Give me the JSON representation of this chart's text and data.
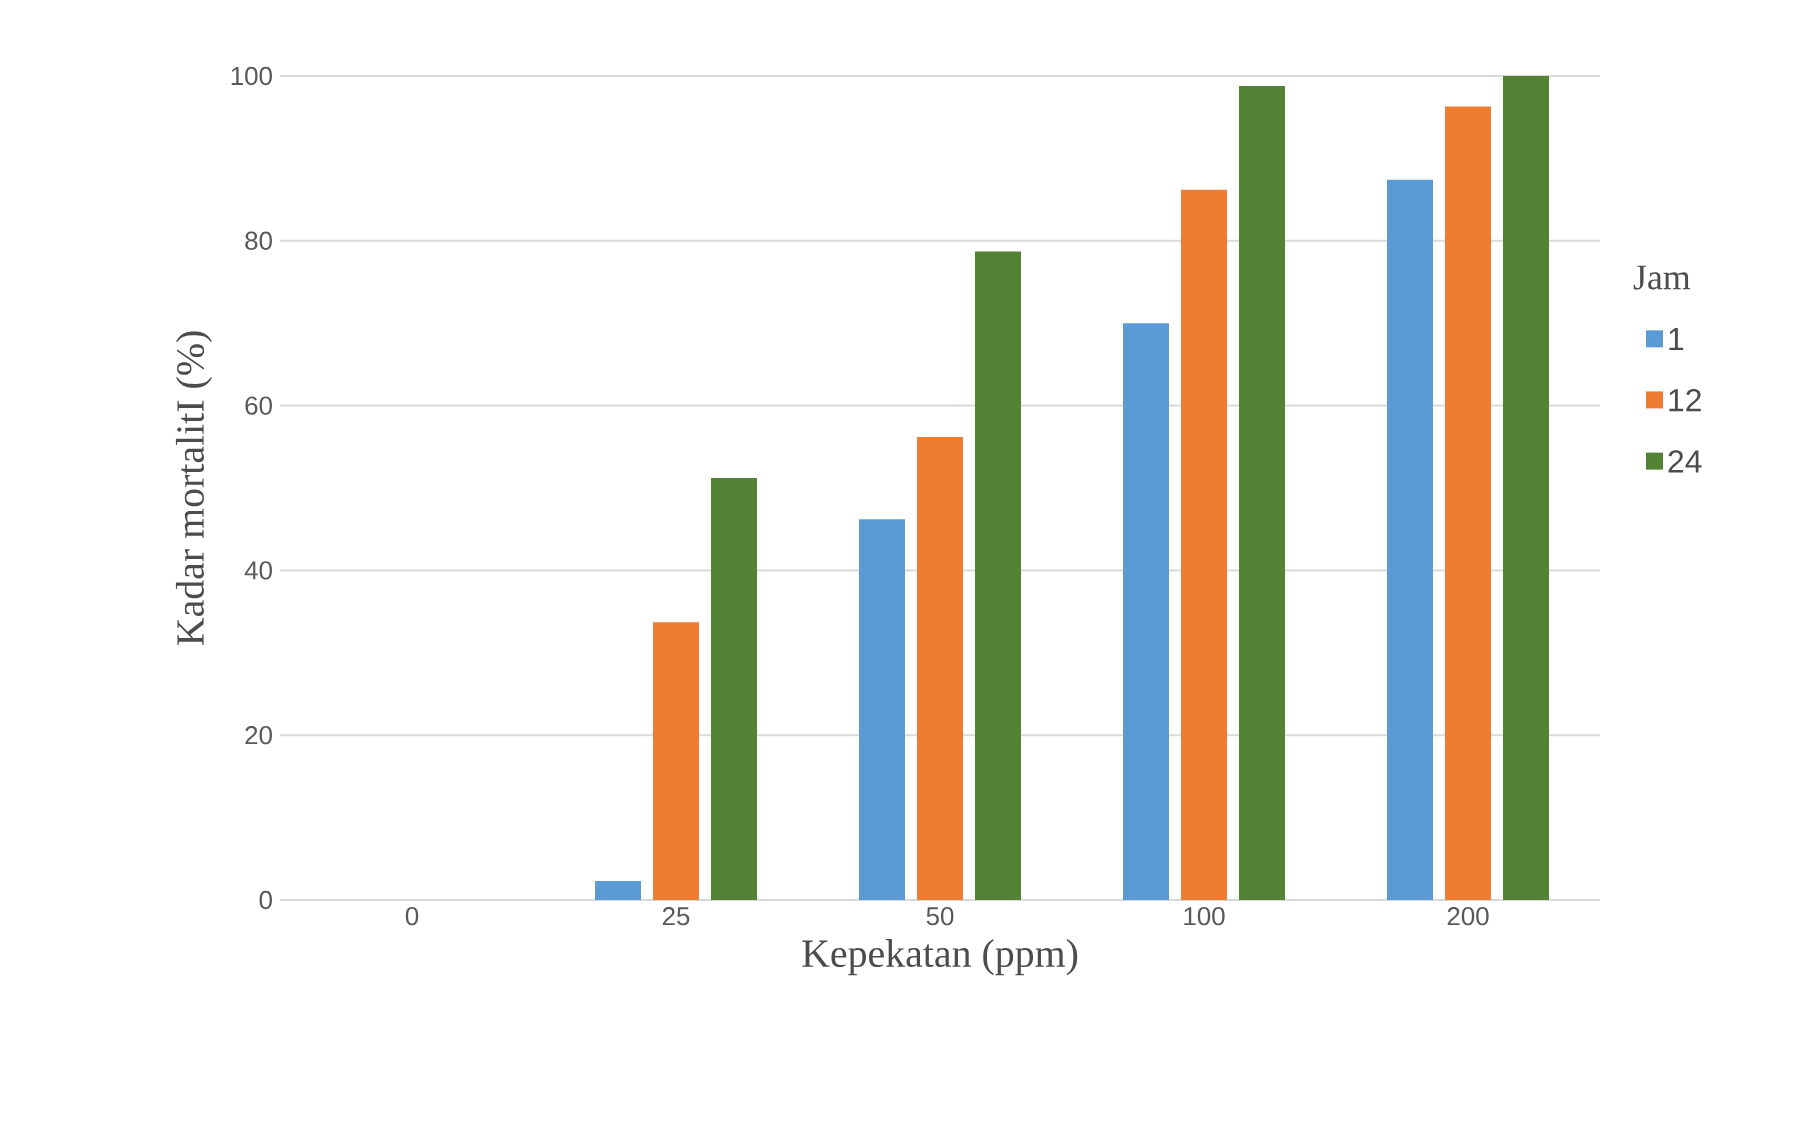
{
  "chart_data": {
    "type": "bar",
    "xlabel": "Kepekatan (ppm)",
    "ylabel": "Kadar mortalitI (%)",
    "legend_title": "Jam",
    "categories": [
      "0",
      "25",
      "50",
      "100",
      "200"
    ],
    "series": [
      {
        "name": "1",
        "color": "#5b9bd5",
        "values": [
          0,
          2.3,
          46.2,
          70.0,
          87.4
        ]
      },
      {
        "name": "12",
        "color": "#ed7d31",
        "values": [
          0,
          33.7,
          56.2,
          86.2,
          96.3
        ]
      },
      {
        "name": "24",
        "color": "#548235",
        "values": [
          0,
          51.2,
          78.7,
          98.8,
          100
        ]
      }
    ],
    "ylim": [
      0,
      100
    ],
    "yticks": [
      0,
      20,
      40,
      60,
      80,
      100
    ],
    "grid": "y",
    "legend": "right"
  }
}
